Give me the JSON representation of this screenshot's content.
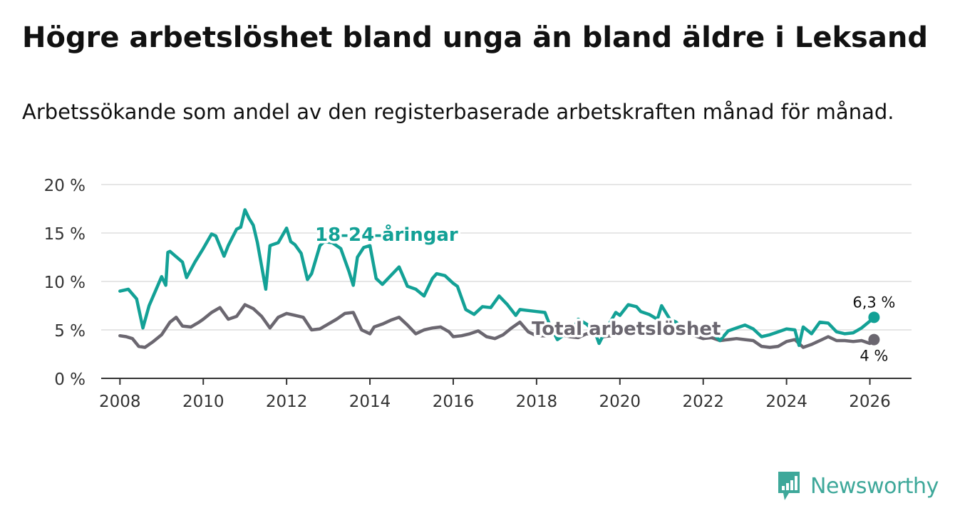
{
  "title": "Högre arbetslöshet bland unga än bland äldre i Leksand",
  "subtitle": "Arbetssökande som andel av den registerbaserade arbetskraften månad för månad.",
  "brand": "Newsworthy",
  "colors": {
    "youth": "#13a196",
    "total": "#6b6770",
    "grid": "#dddddd",
    "axis": "#333333",
    "brand": "#3ea89a"
  },
  "chart_data": {
    "type": "line",
    "title": "Högre arbetslöshet bland unga än bland äldre i Leksand",
    "xlabel": "",
    "ylabel": "",
    "xlim": [
      2007.55,
      2027.0
    ],
    "ylim": [
      0,
      20
    ],
    "y_ticks": [
      0,
      5,
      10,
      15,
      20
    ],
    "y_tick_labels": [
      "0 %",
      "5 %",
      "10 %",
      "15 %",
      "20 %"
    ],
    "x_ticks": [
      2008,
      2010,
      2012,
      2014,
      2016,
      2018,
      2020,
      2022,
      2024,
      2026
    ],
    "x_tick_labels": [
      "2008",
      "2010",
      "2012",
      "2014",
      "2016",
      "2018",
      "2020",
      "2022",
      "2024",
      "2026"
    ],
    "grid": "horizontal",
    "series": [
      {
        "name": "18-24-åringar",
        "label": "18-24-åringar",
        "color": "#13a196",
        "end_label": "6,3 %",
        "x": [
          2008.0,
          2008.2,
          2008.4,
          2008.55,
          2008.7,
          2009.0,
          2009.1,
          2009.15,
          2009.2,
          2009.5,
          2009.6,
          2009.8,
          2010.0,
          2010.2,
          2010.3,
          2010.5,
          2010.6,
          2010.8,
          2010.9,
          2011.0,
          2011.1,
          2011.2,
          2011.3,
          2011.5,
          2011.6,
          2011.8,
          2012.0,
          2012.1,
          2012.2,
          2012.35,
          2012.5,
          2012.6,
          2012.8,
          2012.9,
          2013.1,
          2013.3,
          2013.5,
          2013.6,
          2013.7,
          2013.85,
          2014.0,
          2014.15,
          2014.3,
          2014.5,
          2014.7,
          2014.9,
          2015.1,
          2015.3,
          2015.5,
          2015.6,
          2015.8,
          2016.0,
          2016.1,
          2016.3,
          2016.5,
          2016.7,
          2016.9,
          2017.1,
          2017.3,
          2017.5,
          2017.6,
          2017.8,
          2018.0,
          2018.2,
          2018.3,
          2018.5,
          2018.7,
          2018.9,
          2019.0,
          2019.2,
          2019.4,
          2019.5,
          2019.7,
          2019.9,
          2020.0,
          2020.2,
          2020.4,
          2020.5,
          2020.7,
          2020.9,
          2021.0,
          2021.2,
          2021.35,
          2021.5,
          2021.7,
          2021.9,
          2022.0,
          2022.2,
          2022.4,
          2022.6,
          2022.8,
          2023.0,
          2023.2,
          2023.4,
          2023.6,
          2023.8,
          2024.0,
          2024.2,
          2024.3,
          2024.4,
          2024.6,
          2024.8,
          2025.0,
          2025.2,
          2025.4,
          2025.6,
          2025.8,
          2026.0,
          2026.1
        ],
        "values": [
          9.0,
          9.2,
          8.2,
          5.2,
          7.5,
          10.5,
          9.6,
          13.0,
          13.1,
          12.0,
          10.4,
          12.0,
          13.4,
          14.9,
          14.7,
          12.6,
          13.7,
          15.4,
          15.6,
          17.4,
          16.5,
          15.8,
          14.0,
          9.2,
          13.7,
          14.0,
          15.5,
          14.1,
          13.8,
          12.9,
          10.2,
          10.8,
          13.7,
          14.1,
          14.0,
          13.4,
          11.0,
          9.6,
          12.5,
          13.5,
          13.7,
          10.3,
          9.7,
          10.6,
          11.5,
          9.5,
          9.2,
          8.5,
          10.3,
          10.8,
          10.6,
          9.8,
          9.5,
          7.1,
          6.6,
          7.4,
          7.3,
          8.5,
          7.6,
          6.5,
          7.1,
          7.0,
          6.9,
          6.8,
          5.7,
          4.0,
          4.6,
          5.2,
          6.1,
          5.6,
          4.8,
          3.6,
          5.3,
          6.8,
          6.5,
          7.6,
          7.4,
          6.9,
          6.6,
          6.1,
          7.5,
          6.1,
          5.8,
          5.2,
          4.8,
          5.0,
          5.3,
          4.8,
          3.9,
          4.9,
          5.2,
          5.5,
          5.1,
          4.3,
          4.5,
          4.8,
          5.1,
          5.0,
          3.4,
          5.3,
          4.6,
          5.8,
          5.7,
          4.8,
          4.6,
          4.7,
          5.2,
          5.9,
          6.3
        ]
      },
      {
        "name": "Total arbetslöshet",
        "label": "Total arbetslöshet",
        "color": "#6b6770",
        "end_label": "4 %",
        "x": [
          2008.0,
          2008.15,
          2008.3,
          2008.45,
          2008.6,
          2008.8,
          2009.0,
          2009.2,
          2009.35,
          2009.5,
          2009.7,
          2009.9,
          2010.0,
          2010.2,
          2010.4,
          2010.6,
          2010.8,
          2011.0,
          2011.2,
          2011.4,
          2011.6,
          2011.8,
          2012.0,
          2012.2,
          2012.4,
          2012.6,
          2012.8,
          2013.0,
          2013.2,
          2013.4,
          2013.6,
          2013.8,
          2014.0,
          2014.1,
          2014.3,
          2014.5,
          2014.7,
          2014.9,
          2015.1,
          2015.3,
          2015.5,
          2015.7,
          2015.9,
          2016.0,
          2016.2,
          2016.4,
          2016.6,
          2016.8,
          2017.0,
          2017.2,
          2017.4,
          2017.6,
          2017.8,
          2018.0,
          2018.2,
          2018.4,
          2018.6,
          2018.8,
          2019.0,
          2019.2,
          2019.4,
          2019.6,
          2019.8,
          2020.0,
          2020.2,
          2020.4,
          2020.6,
          2020.8,
          2021.0,
          2021.2,
          2021.4,
          2021.6,
          2021.8,
          2022.0,
          2022.2,
          2022.4,
          2022.6,
          2022.8,
          2023.0,
          2023.2,
          2023.4,
          2023.6,
          2023.8,
          2024.0,
          2024.2,
          2024.4,
          2024.6,
          2024.8,
          2025.0,
          2025.2,
          2025.4,
          2025.6,
          2025.8,
          2026.0,
          2026.1
        ],
        "values": [
          4.4,
          4.3,
          4.1,
          3.3,
          3.2,
          3.8,
          4.5,
          5.8,
          6.3,
          5.4,
          5.3,
          5.8,
          6.1,
          6.8,
          7.3,
          6.1,
          6.4,
          7.6,
          7.2,
          6.4,
          5.2,
          6.3,
          6.7,
          6.5,
          6.3,
          5.0,
          5.1,
          5.6,
          6.1,
          6.7,
          6.8,
          5.0,
          4.6,
          5.3,
          5.6,
          6.0,
          6.3,
          5.5,
          4.6,
          5.0,
          5.2,
          5.3,
          4.8,
          4.3,
          4.4,
          4.6,
          4.9,
          4.3,
          4.1,
          4.5,
          5.2,
          5.8,
          4.8,
          4.4,
          4.4,
          4.8,
          4.5,
          4.3,
          4.2,
          4.6,
          4.5,
          4.3,
          4.4,
          4.6,
          4.8,
          4.9,
          4.7,
          4.6,
          4.8,
          4.9,
          5.0,
          4.7,
          4.4,
          4.1,
          4.2,
          3.9,
          4.0,
          4.1,
          4.0,
          3.9,
          3.3,
          3.2,
          3.3,
          3.8,
          4.0,
          3.2,
          3.5,
          3.9,
          4.3,
          3.9,
          3.9,
          3.8,
          3.9,
          3.6,
          4.0
        ]
      }
    ]
  }
}
